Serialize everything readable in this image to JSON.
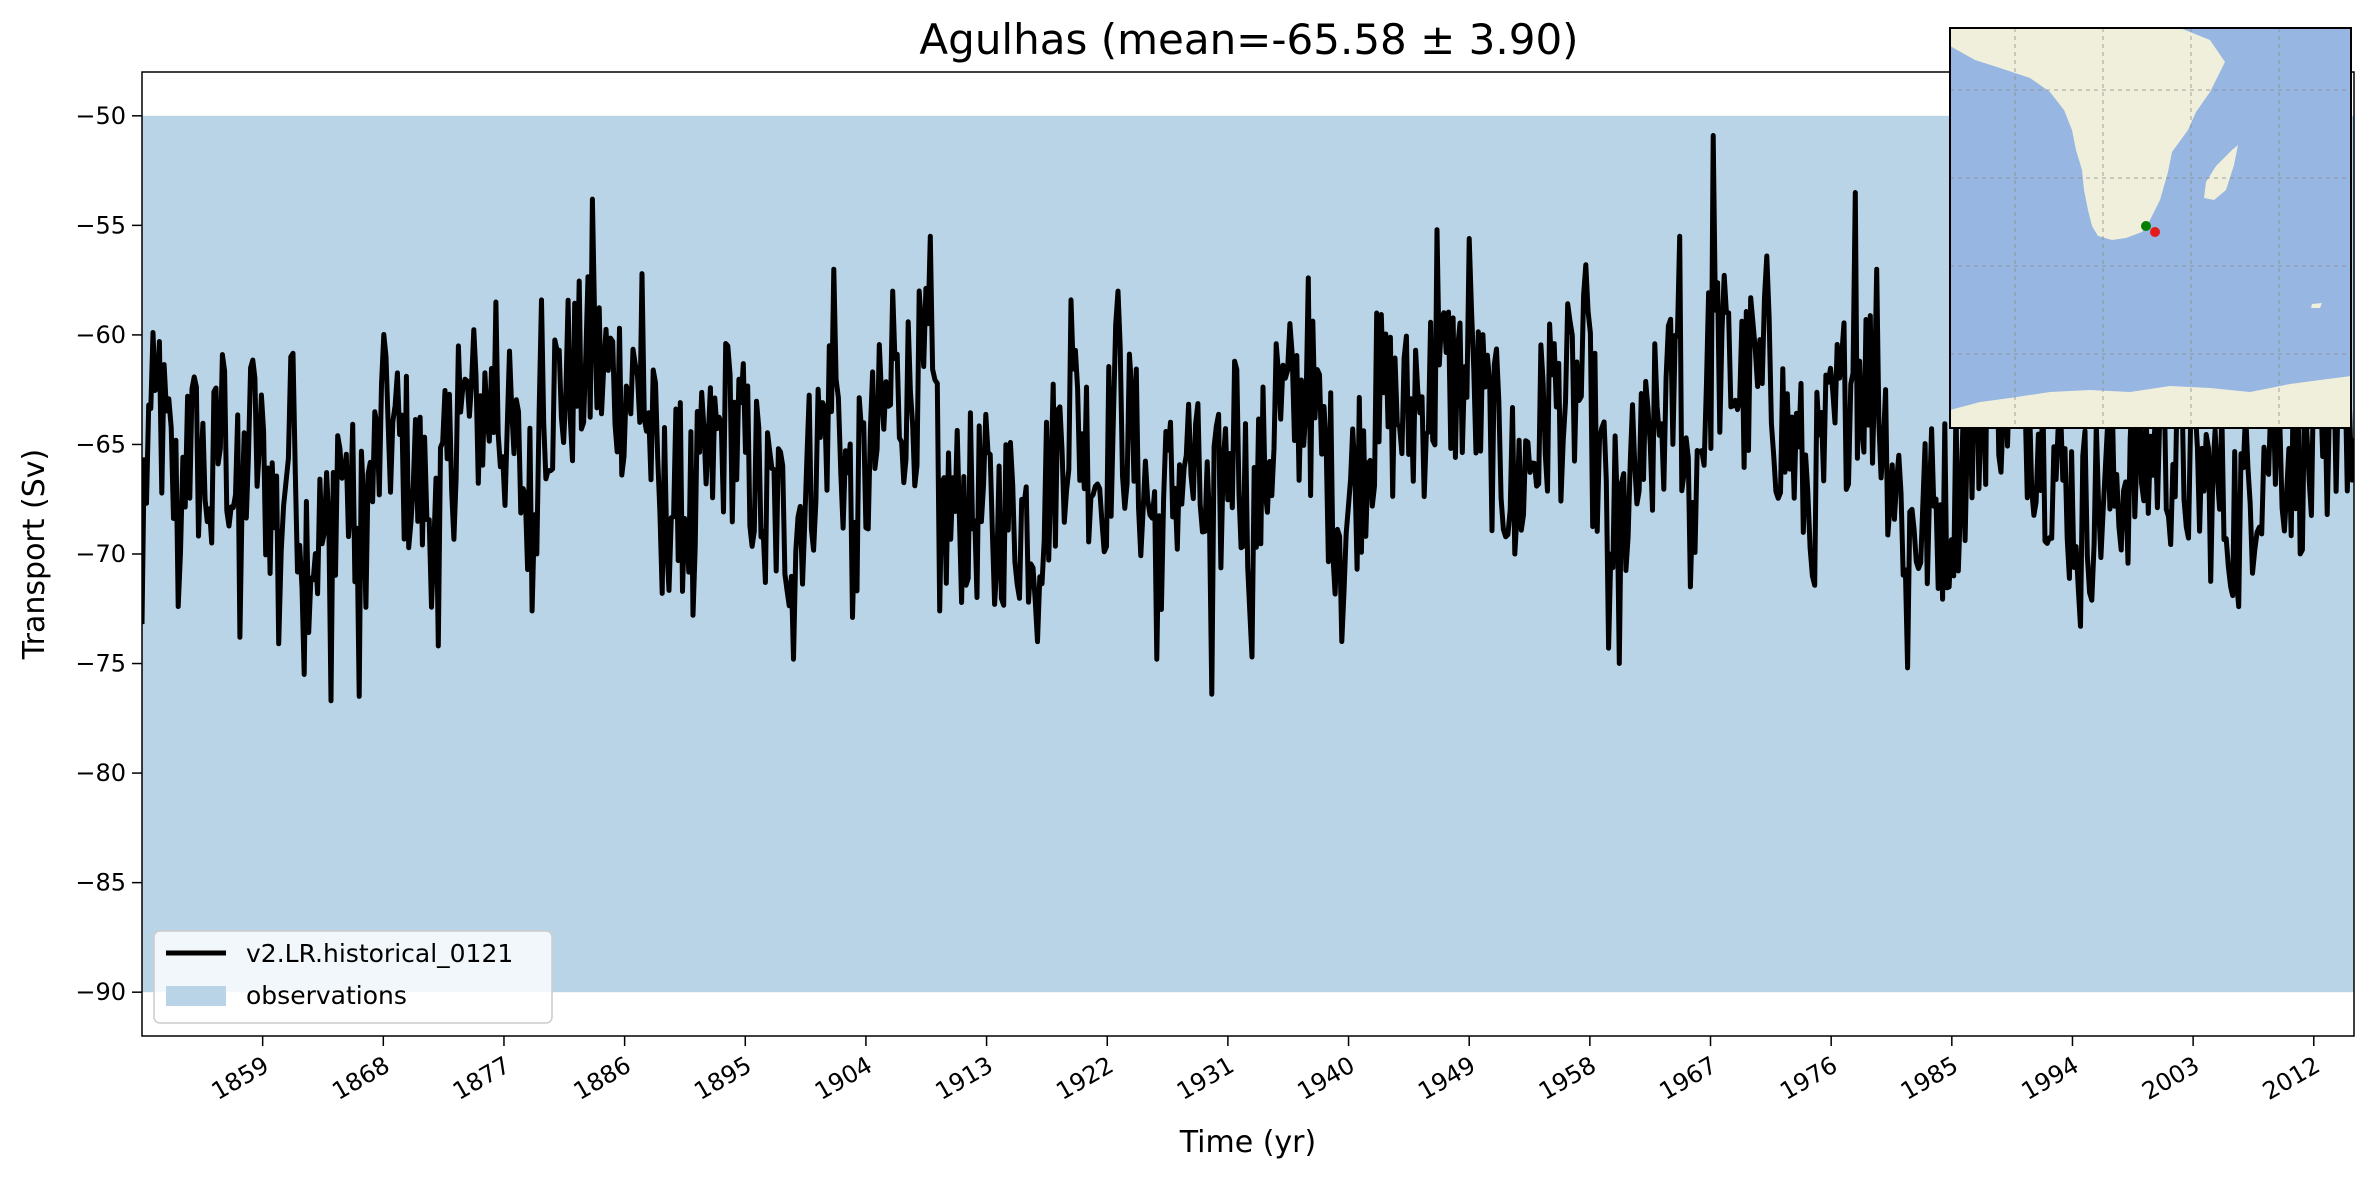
{
  "chart_data": {
    "type": "line",
    "title": "Agulhas (mean=-65.58 ± 3.90)",
    "xlabel": "Time (yr)",
    "ylabel": "Transport (Sv)",
    "xlim": [
      1850,
      2015
    ],
    "ylim": [
      -92,
      -48
    ],
    "x_ticks": [
      1859,
      1868,
      1877,
      1886,
      1895,
      1904,
      1913,
      1922,
      1931,
      1940,
      1949,
      1958,
      1967,
      1976,
      1985,
      1994,
      2003,
      2012
    ],
    "x_tick_labels": [
      "1859",
      "1868",
      "1877",
      "1886",
      "1895",
      "1904",
      "1913",
      "1922",
      "1931",
      "1940",
      "1949",
      "1958",
      "1967",
      "1976",
      "1985",
      "1994",
      "2003",
      "2012"
    ],
    "y_ticks": [
      -50,
      -55,
      -60,
      -65,
      -70,
      -75,
      -80,
      -85,
      -90
    ],
    "y_tick_labels": [
      "−50",
      "−55",
      "−60",
      "−65",
      "−70",
      "−75",
      "−80",
      "−85",
      "−90"
    ],
    "grid": false,
    "legend_position": "lower-left",
    "series": [
      {
        "name": "v2.LR.historical_0121",
        "kind": "line",
        "color": "#000000",
        "key_points": [
          {
            "x": 1850.0,
            "y": -73.2
          },
          {
            "x": 1850.5,
            "y": -63.2
          },
          {
            "x": 1851.3,
            "y": -60.3
          },
          {
            "x": 1852.7,
            "y": -72.4
          },
          {
            "x": 1853.4,
            "y": -62.8
          },
          {
            "x": 1855.2,
            "y": -69.5
          },
          {
            "x": 1856.0,
            "y": -60.9
          },
          {
            "x": 1857.3,
            "y": -73.8
          },
          {
            "x": 1858.1,
            "y": -61.5
          },
          {
            "x": 1860.2,
            "y": -74.1
          },
          {
            "x": 1861.1,
            "y": -61.0
          },
          {
            "x": 1862.1,
            "y": -75.5
          },
          {
            "x": 1864.1,
            "y": -76.7
          },
          {
            "x": 1864.6,
            "y": -64.6
          },
          {
            "x": 1866.2,
            "y": -76.5
          },
          {
            "x": 1868.2,
            "y": -61.0
          },
          {
            "x": 1872.1,
            "y": -74.2
          },
          {
            "x": 1873.6,
            "y": -60.5
          },
          {
            "x": 1876.4,
            "y": -58.5
          },
          {
            "x": 1879.1,
            "y": -72.6
          },
          {
            "x": 1879.8,
            "y": -58.4
          },
          {
            "x": 1883.6,
            "y": -53.8
          },
          {
            "x": 1887.3,
            "y": -57.2
          },
          {
            "x": 1888.8,
            "y": -71.8
          },
          {
            "x": 1890.0,
            "y": -70.3
          },
          {
            "x": 1891.1,
            "y": -72.8
          },
          {
            "x": 1893.7,
            "y": -60.5
          },
          {
            "x": 1896.5,
            "y": -71.3
          },
          {
            "x": 1898.6,
            "y": -74.8
          },
          {
            "x": 1901.6,
            "y": -57.0
          },
          {
            "x": 1903.0,
            "y": -72.9
          },
          {
            "x": 1906.0,
            "y": -58.0
          },
          {
            "x": 1908.8,
            "y": -55.5
          },
          {
            "x": 1909.5,
            "y": -72.6
          },
          {
            "x": 1913.6,
            "y": -72.3
          },
          {
            "x": 1916.8,
            "y": -74.0
          },
          {
            "x": 1919.3,
            "y": -58.4
          },
          {
            "x": 1921.6,
            "y": -68.5
          },
          {
            "x": 1922.8,
            "y": -58.0
          },
          {
            "x": 1925.7,
            "y": -74.8
          },
          {
            "x": 1927.9,
            "y": -65.5
          },
          {
            "x": 1929.8,
            "y": -76.4
          },
          {
            "x": 1931.5,
            "y": -61.2
          },
          {
            "x": 1932.8,
            "y": -74.7
          },
          {
            "x": 1934.6,
            "y": -60.4
          },
          {
            "x": 1937.0,
            "y": -57.4
          },
          {
            "x": 1939.5,
            "y": -74.0
          },
          {
            "x": 1942.1,
            "y": -59.0
          },
          {
            "x": 1945.0,
            "y": -60.7
          },
          {
            "x": 1946.6,
            "y": -55.2
          },
          {
            "x": 1949.0,
            "y": -55.6
          },
          {
            "x": 1952.4,
            "y": -70.0
          },
          {
            "x": 1955.0,
            "y": -59.5
          },
          {
            "x": 1957.7,
            "y": -56.8
          },
          {
            "x": 1959.4,
            "y": -74.3
          },
          {
            "x": 1960.2,
            "y": -75.0
          },
          {
            "x": 1962.0,
            "y": -66.6
          },
          {
            "x": 1964.7,
            "y": -55.5
          },
          {
            "x": 1965.5,
            "y": -71.5
          },
          {
            "x": 1967.2,
            "y": -50.9
          },
          {
            "x": 1970.0,
            "y": -58.3
          },
          {
            "x": 1971.2,
            "y": -56.4
          },
          {
            "x": 1974.6,
            "y": -71.0
          },
          {
            "x": 1977.8,
            "y": -53.5
          },
          {
            "x": 1979.4,
            "y": -57.0
          },
          {
            "x": 1981.7,
            "y": -75.2
          },
          {
            "x": 1984.8,
            "y": -71.5
          },
          {
            "x": 1987.7,
            "y": -56.0
          },
          {
            "x": 1989.8,
            "y": -55.8
          },
          {
            "x": 1994.6,
            "y": -73.3
          },
          {
            "x": 2000.5,
            "y": -64.0
          },
          {
            "x": 2005.8,
            "y": -71.5
          },
          {
            "x": 2006.4,
            "y": -72.4
          },
          {
            "x": 2008.8,
            "y": -63.0
          },
          {
            "x": 2013.0,
            "y": -68.2
          },
          {
            "x": 2014.0,
            "y": -53.7
          },
          {
            "x": 2015.0,
            "y": -64.7
          }
        ]
      },
      {
        "name": "observations",
        "kind": "band",
        "color": "#bad4e7",
        "y_low": -90,
        "y_high": -50
      }
    ],
    "inset_map": {
      "region": "Southern Africa / Agulhas",
      "land_color": "#efefdb",
      "ocean_color": "#97b6e1",
      "markers": [
        {
          "color": "#008000"
        },
        {
          "color": "#e41a1c"
        }
      ]
    }
  }
}
